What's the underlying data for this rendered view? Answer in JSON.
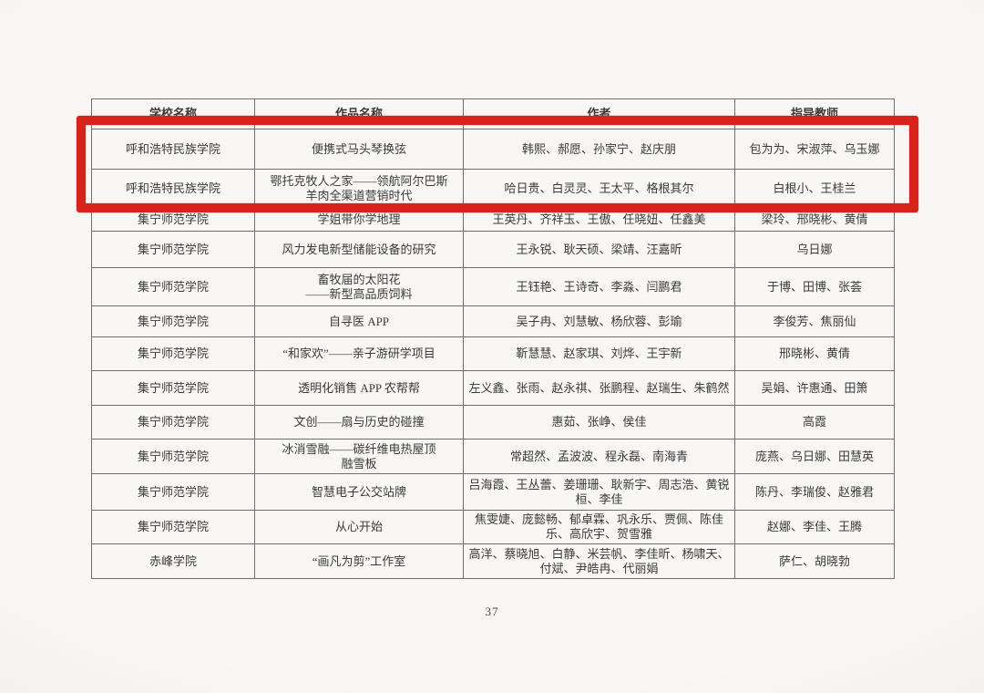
{
  "page": {
    "number": "37"
  },
  "annotation": {
    "color": "#d8221c"
  },
  "table": {
    "columns": [
      {
        "key": "school",
        "label": "学校名称"
      },
      {
        "key": "work",
        "label": "作品名称"
      },
      {
        "key": "authors",
        "label": "作者"
      },
      {
        "key": "advisors",
        "label": "指导教师"
      }
    ],
    "rows": [
      {
        "school": "呼和浩特民族学院",
        "work_lines": [
          "便携式马头琴换弦"
        ],
        "authors": "韩熙、郝愿、孙家宁、赵庆朋",
        "advisors": "包为为、宋淑萍、乌玉娜",
        "highlighted": true
      },
      {
        "school": "呼和浩特民族学院",
        "work_lines": [
          "鄂托克牧人之家——领航阿尔巴斯",
          "羊肉全渠道营销时代"
        ],
        "authors": "哈日贵、白灵灵、王太平、格根其尔",
        "advisors": "白根小、王桂兰",
        "highlighted": true
      },
      {
        "school": "集宁师范学院",
        "work_lines": [
          "学姐带你学地理"
        ],
        "authors": "王英丹、齐祥玉、王傲、任晓妞、任鑫美",
        "advisors": "梁玲、邢晓彬、黄倩",
        "highlighted": false
      },
      {
        "school": "集宁师范学院",
        "work_lines": [
          "风力发电新型储能设备的研究"
        ],
        "authors": "王永锐、耿天硕、梁靖、汪嘉昕",
        "advisors": "乌日娜",
        "highlighted": false
      },
      {
        "school": "集宁师范学院",
        "work_lines": [
          "畜牧届的太阳花",
          "——新型高品质饲料"
        ],
        "authors": "王钰艳、王诗奇、李淼、闫鹏君",
        "advisors": "于博、田博、张荟",
        "highlighted": false
      },
      {
        "school": "集宁师范学院",
        "work_lines": [
          "自寻医 APP"
        ],
        "authors": "吴子冉、刘慧敏、杨欣蓉、彭瑜",
        "advisors": "李俊芳、焦丽仙",
        "highlighted": false
      },
      {
        "school": "集宁师范学院",
        "work_lines": [
          "“和家欢”——亲子游研学项目"
        ],
        "authors": "靳慧慧、赵家琪、刘烨、王宇新",
        "advisors": "邢晓彬、黄倩",
        "highlighted": false
      },
      {
        "school": "集宁师范学院",
        "work_lines": [
          "透明化销售 APP 农帮帮"
        ],
        "authors": "左义鑫、张雨、赵永祺、张鹏程、赵瑞生、朱鹤然",
        "advisors": "吴娟、许惠通、田箫",
        "highlighted": false
      },
      {
        "school": "集宁师范学院",
        "work_lines": [
          "文创——扇与历史的碰撞"
        ],
        "authors": "惠茹、张峥、侯佳",
        "advisors": "高霞",
        "highlighted": false
      },
      {
        "school": "集宁师范学院",
        "work_lines": [
          "冰消雪融——碳纤维电热屋顶",
          "融雪板"
        ],
        "authors": "常超然、孟波波、程永磊、南海青",
        "advisors": "庞燕、乌日娜、田慧英",
        "highlighted": false
      },
      {
        "school": "集宁师范学院",
        "work_lines": [
          "智慧电子公交站牌"
        ],
        "authors": "吕海霞、王丛蕾、姜珊珊、耿新宇、周志浩、黄锐桓、李佳",
        "advisors": "陈丹、李瑞俊、赵雅君",
        "highlighted": false
      },
      {
        "school": "集宁师范学院",
        "work_lines": [
          "从心开始"
        ],
        "authors": "焦雯婕、庞懿畅、郁卓霖、巩永乐、贾佩、陈佳乐、高欣宇、贺雪雅",
        "advisors": "赵娜、李佳、王腾",
        "highlighted": false
      },
      {
        "school": "赤峰学院",
        "work_lines": [
          "“画凡为剪”工作室"
        ],
        "authors": "高洋、蔡晓旭、白静、米芸帆、李佳昕、杨啸天、付斌、尹皓冉、代丽娟",
        "advisors": "萨仁、胡晓勃",
        "highlighted": false
      }
    ]
  }
}
